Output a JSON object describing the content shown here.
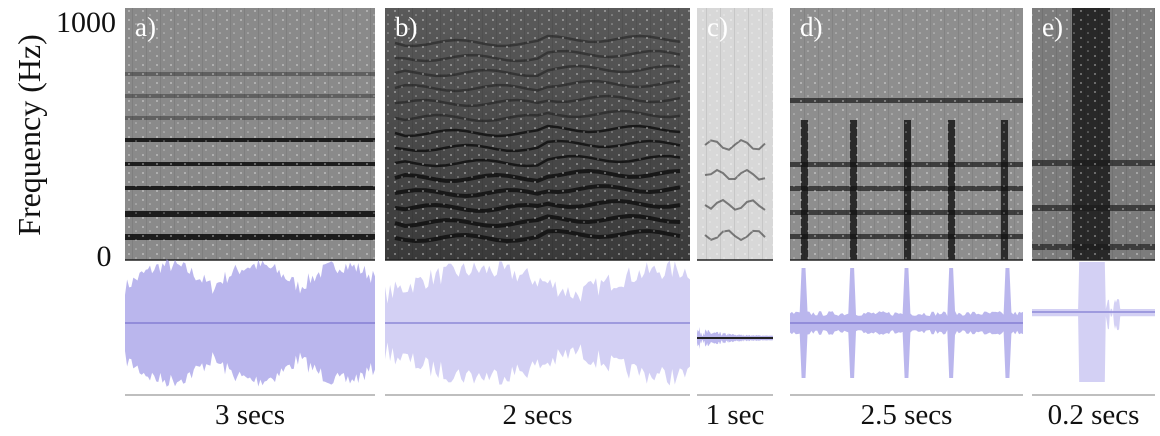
{
  "y_axis": {
    "label": "Frequency (Hz)",
    "ticks": [
      "1000",
      "0"
    ]
  },
  "panels": [
    {
      "label": "a)",
      "duration": "3 secs"
    },
    {
      "label": "b)",
      "duration": "2 secs"
    },
    {
      "label": "c)",
      "duration": "1 sec"
    },
    {
      "label": "d)",
      "duration": "2.5 secs"
    },
    {
      "label": "e)",
      "duration": "0.2 secs"
    }
  ]
}
